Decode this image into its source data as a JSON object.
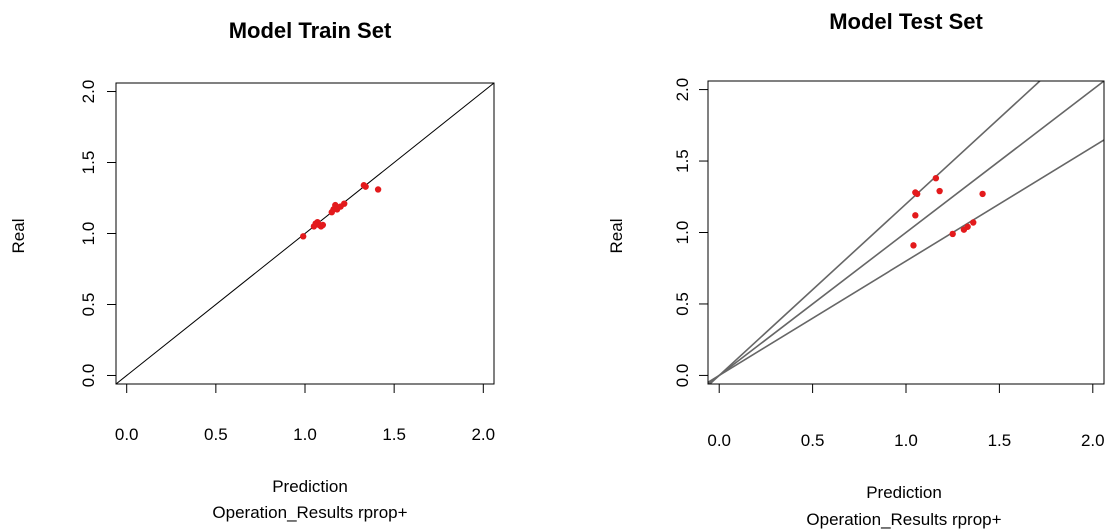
{
  "chart_data": [
    {
      "type": "scatter",
      "title": "Model Train Set",
      "xlabel": "Prediction",
      "sublabel": "Operation_Results rprop+",
      "ylabel": "Real",
      "xlim": [
        -0.06,
        2.06
      ],
      "ylim": [
        -0.06,
        2.06
      ],
      "xticks": [
        "0.0",
        "0.5",
        "1.0",
        "1.5",
        "2.0"
      ],
      "yticks": [
        "0.0",
        "0.5",
        "1.0",
        "1.5",
        "2.0"
      ],
      "tick_values": [
        0,
        0.5,
        1.0,
        1.5,
        2.0
      ],
      "point_color": "#e31a1c",
      "reference_lines": [
        {
          "slope": 1.0
        }
      ],
      "points": [
        {
          "x": 0.99,
          "y": 0.98
        },
        {
          "x": 1.05,
          "y": 1.05
        },
        {
          "x": 1.06,
          "y": 1.07
        },
        {
          "x": 1.07,
          "y": 1.08
        },
        {
          "x": 1.08,
          "y": 1.06
        },
        {
          "x": 1.09,
          "y": 1.05
        },
        {
          "x": 1.1,
          "y": 1.06
        },
        {
          "x": 1.15,
          "y": 1.15
        },
        {
          "x": 1.16,
          "y": 1.17
        },
        {
          "x": 1.17,
          "y": 1.2
        },
        {
          "x": 1.18,
          "y": 1.17
        },
        {
          "x": 1.2,
          "y": 1.19
        },
        {
          "x": 1.22,
          "y": 1.21
        },
        {
          "x": 1.33,
          "y": 1.34
        },
        {
          "x": 1.34,
          "y": 1.33
        },
        {
          "x": 1.41,
          "y": 1.31
        }
      ]
    },
    {
      "type": "scatter",
      "title": "Model Test Set",
      "xlabel": "Prediction",
      "sublabel": "Operation_Results rprop+",
      "ylabel": "Real",
      "xlim": [
        -0.06,
        2.06
      ],
      "ylim": [
        -0.06,
        2.06
      ],
      "xticks": [
        "0.0",
        "0.5",
        "1.0",
        "1.5",
        "2.0"
      ],
      "yticks": [
        "0.0",
        "0.5",
        "1.0",
        "1.5",
        "2.0"
      ],
      "tick_values": [
        0,
        0.5,
        1.0,
        1.5,
        2.0
      ],
      "point_color": "#e31a1c",
      "reference_lines": [
        {
          "slope": 1.2
        },
        {
          "slope": 1.0
        },
        {
          "slope": 0.8
        }
      ],
      "points": [
        {
          "x": 1.04,
          "y": 0.91
        },
        {
          "x": 1.05,
          "y": 1.12
        },
        {
          "x": 1.05,
          "y": 1.28
        },
        {
          "x": 1.06,
          "y": 1.27
        },
        {
          "x": 1.16,
          "y": 1.38
        },
        {
          "x": 1.18,
          "y": 1.29
        },
        {
          "x": 1.25,
          "y": 0.99
        },
        {
          "x": 1.31,
          "y": 1.02
        },
        {
          "x": 1.33,
          "y": 1.04
        },
        {
          "x": 1.36,
          "y": 1.07
        },
        {
          "x": 1.41,
          "y": 1.27
        }
      ]
    }
  ]
}
